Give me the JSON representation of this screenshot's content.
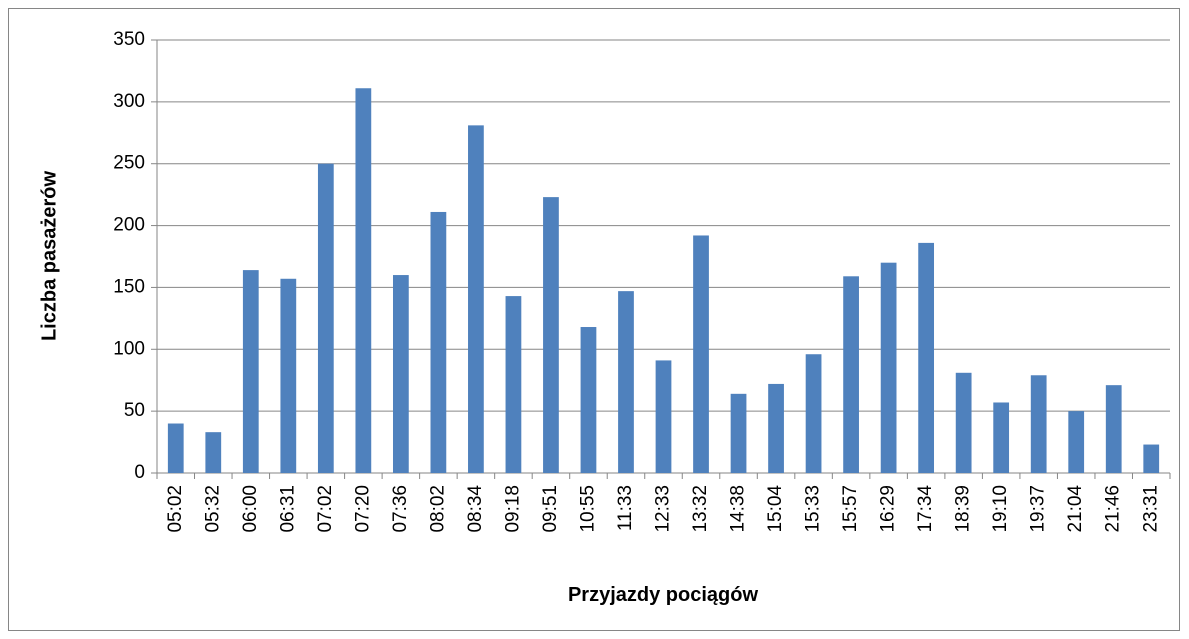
{
  "chart_data": {
    "type": "bar",
    "y_label": "Liczba pasażerów",
    "x_label": "Przyjazdy pociągów",
    "categories": [
      "05:02",
      "05:32",
      "06:00",
      "06:31",
      "07:02",
      "07:20",
      "07:36",
      "08:02",
      "08:34",
      "09:18",
      "09:51",
      "10:55",
      "11:33",
      "12:33",
      "13:32",
      "14:38",
      "15:04",
      "15:33",
      "15:57",
      "16:29",
      "17:34",
      "18:39",
      "19:10",
      "19:37",
      "21:04",
      "21:46",
      "23:31"
    ],
    "values": [
      40,
      33,
      164,
      157,
      250,
      311,
      160,
      211,
      281,
      143,
      223,
      118,
      147,
      91,
      192,
      64,
      72,
      96,
      159,
      170,
      186,
      81,
      57,
      79,
      50,
      71,
      23
    ],
    "color": "#4f81bd",
    "ylim": [
      0,
      350
    ],
    "yticks": [
      0,
      50,
      100,
      150,
      200,
      250,
      300,
      350
    ],
    "grid": true
  }
}
